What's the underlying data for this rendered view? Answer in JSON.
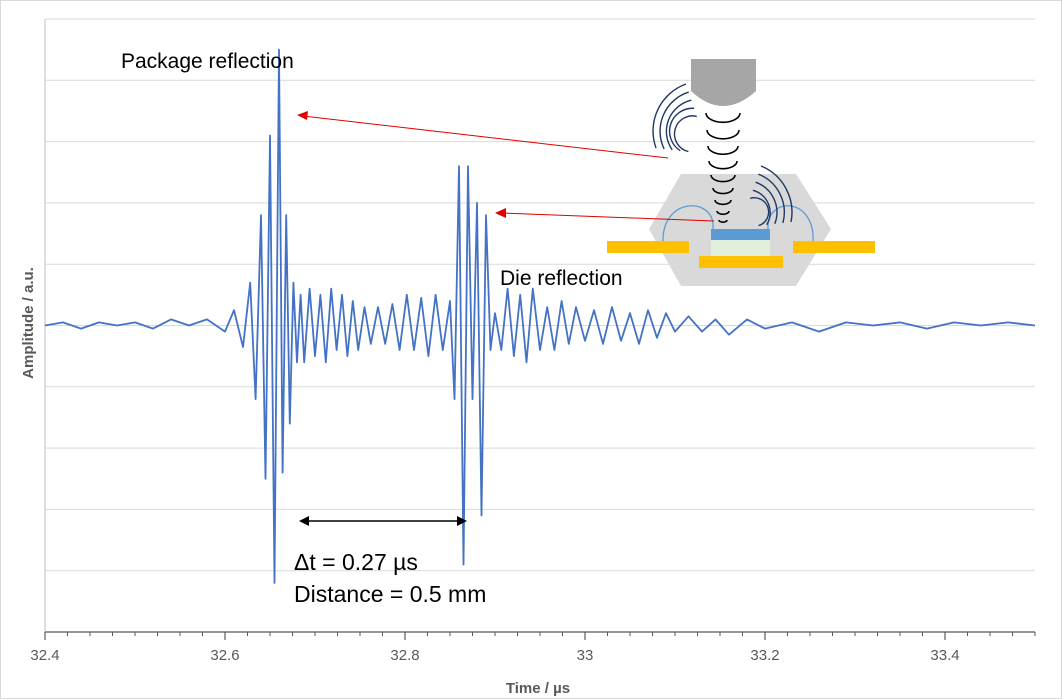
{
  "chart_data": {
    "type": "line",
    "title": "",
    "xlabel": "Time / µs",
    "ylabel": "Amplitude / a.u.",
    "xlim": [
      32.4,
      33.5
    ],
    "ylim": [
      -5,
      5
    ],
    "x_ticks": [
      "32.4",
      "32.6",
      "32.8",
      "33",
      "33.2",
      "33.4"
    ],
    "x_tick_values": [
      32.4,
      32.6,
      32.8,
      33.0,
      33.2,
      33.4
    ],
    "y_gridlines": [
      -4,
      -3,
      -2,
      -1,
      0,
      1,
      2,
      3,
      4,
      5
    ],
    "grid": true,
    "legend": "none",
    "line_color": "#4472c4",
    "series": [
      {
        "x": [
          32.4,
          32.42,
          32.44,
          32.46,
          32.48,
          32.5,
          32.52,
          32.54,
          32.56,
          32.58,
          32.6,
          32.61,
          32.62,
          32.628,
          32.634,
          32.64,
          32.645,
          32.65,
          32.655,
          32.66,
          32.664,
          32.668,
          32.672,
          32.676,
          32.68,
          32.684,
          32.688,
          32.694,
          32.7,
          32.706,
          32.712,
          32.718,
          32.724,
          32.73,
          32.736,
          32.742,
          32.748,
          32.755,
          32.762,
          32.77,
          32.778,
          32.786,
          32.794,
          32.802,
          32.81,
          32.818,
          32.826,
          32.834,
          32.842,
          32.85,
          32.855,
          32.86,
          32.865,
          32.87,
          32.875,
          32.88,
          32.885,
          32.89,
          32.895,
          32.9,
          32.907,
          32.914,
          32.921,
          32.928,
          32.935,
          32.942,
          32.95,
          32.958,
          32.966,
          32.974,
          32.982,
          32.99,
          33.0,
          33.01,
          33.02,
          33.03,
          33.04,
          33.05,
          33.06,
          33.07,
          33.08,
          33.09,
          33.1,
          33.115,
          33.13,
          33.145,
          33.16,
          33.18,
          33.2,
          33.23,
          33.26,
          33.29,
          33.32,
          33.35,
          33.38,
          33.41,
          33.44,
          33.47,
          33.5
        ],
        "y": [
          0.0,
          0.05,
          -0.05,
          0.05,
          0.0,
          0.05,
          -0.05,
          0.1,
          0.0,
          0.1,
          -0.1,
          0.25,
          -0.35,
          0.7,
          -1.2,
          1.8,
          -2.5,
          3.1,
          -4.2,
          4.5,
          -2.4,
          1.8,
          -1.6,
          0.7,
          -0.6,
          0.5,
          -0.6,
          0.6,
          -0.5,
          0.5,
          -0.6,
          0.6,
          -0.4,
          0.5,
          -0.5,
          0.4,
          -0.4,
          0.3,
          -0.3,
          0.3,
          -0.3,
          0.35,
          -0.4,
          0.5,
          -0.4,
          0.45,
          -0.5,
          0.5,
          -0.4,
          0.4,
          -1.2,
          2.6,
          -3.9,
          2.6,
          -1.2,
          2.0,
          -3.1,
          1.8,
          -0.4,
          0.2,
          -0.4,
          0.6,
          -0.5,
          0.5,
          -0.6,
          0.6,
          -0.4,
          0.3,
          -0.4,
          0.4,
          -0.3,
          0.3,
          -0.25,
          0.25,
          -0.3,
          0.3,
          -0.25,
          0.2,
          -0.3,
          0.25,
          -0.2,
          0.2,
          -0.1,
          0.15,
          -0.1,
          0.1,
          -0.15,
          0.1,
          -0.05,
          0.05,
          -0.1,
          0.05,
          0.0,
          0.05,
          -0.05,
          0.05,
          0.0,
          0.05,
          0.0
        ]
      }
    ],
    "annotations": {
      "package_label": "Package reflection",
      "die_label": "Die reflection",
      "dt_label": "Δt = 0.27 µs",
      "distance_label": "Distance = 0.5 mm"
    },
    "colors": {
      "arrow_red": "#e00000",
      "probe_gray": "#a6a6a6",
      "package_gray": "#d9d9d9",
      "lead_yellow": "#ffc000",
      "die_blue": "#5b9bd5",
      "wave_navy": "#1f3864"
    }
  }
}
